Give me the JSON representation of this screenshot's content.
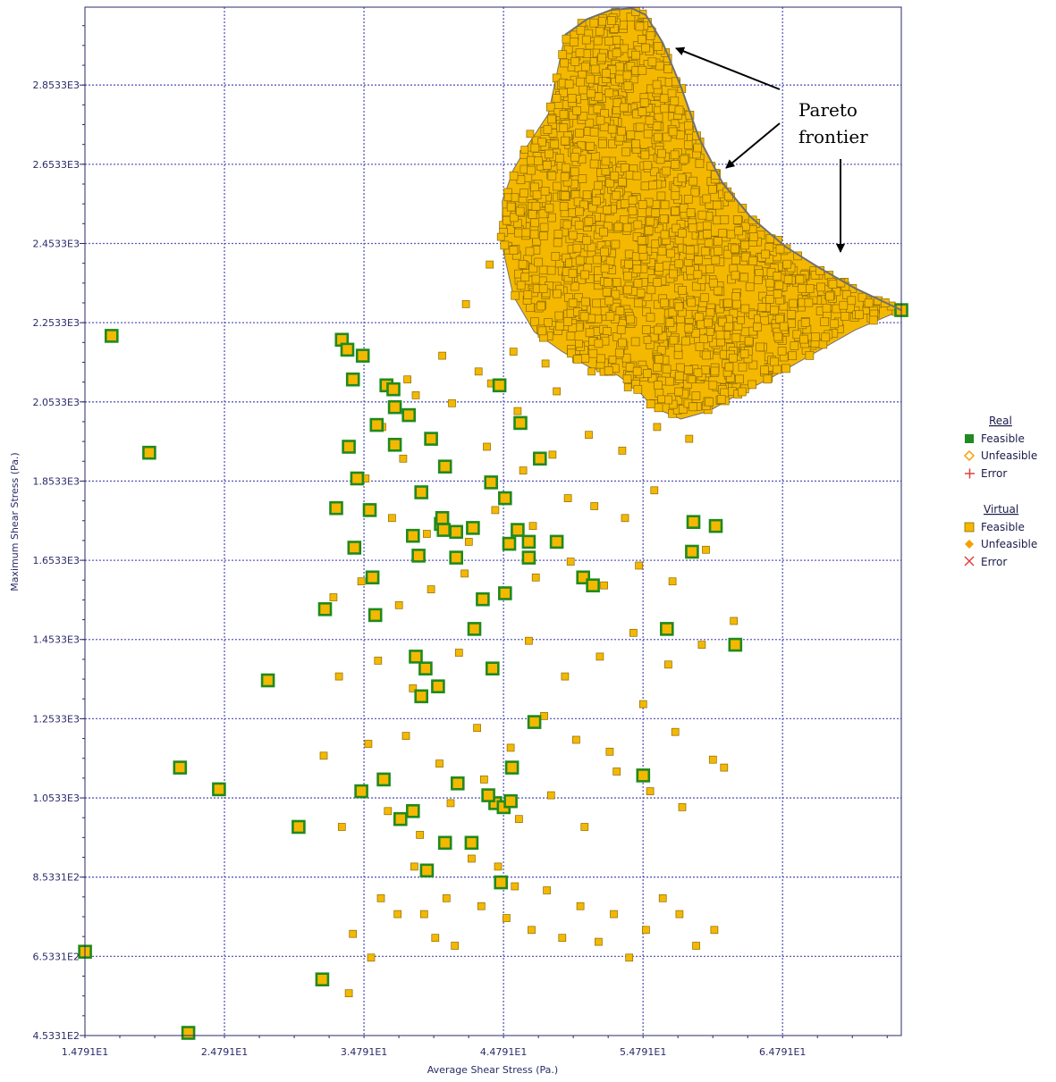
{
  "colors": {
    "real_feasible_fill": "#f5b800",
    "real_feasible_border": "#1f8a1f",
    "virtual_feasible_fill": "#f5b800",
    "virtual_feasible_border": "#8a6a00",
    "unfeasible": "#f5a000",
    "error": "#e04040",
    "grid": "#5b5bbb",
    "axis": "#2a2a6a",
    "pareto_edge": "#707070"
  },
  "chart_data": {
    "type": "scatter",
    "xlabel": "Average Shear Stress (Pa.)",
    "ylabel": "Maximum Shear Stress (Pa.)",
    "xlim": [
      14.791,
      73.3
    ],
    "ylim": [
      453.31,
      3050
    ],
    "x_ticks": [
      14.791,
      24.791,
      34.791,
      44.791,
      54.791,
      64.791
    ],
    "x_tick_labels": [
      "1.4791E1",
      "2.4791E1",
      "3.4791E1",
      "4.4791E1",
      "5.4791E1",
      "6.4791E1"
    ],
    "y_ticks": [
      453.31,
      653.31,
      853.31,
      1053.3,
      1253.3,
      1453.3,
      1653.3,
      1853.3,
      2053.3,
      2253.3,
      2453.3,
      2653.3,
      2853.3
    ],
    "y_tick_labels": [
      "4.5331E2",
      "6.5331E2",
      "8.5331E2",
      "1.0533E3",
      "1.2533E3",
      "1.4533E3",
      "1.6533E3",
      "1.8533E3",
      "2.0533E3",
      "2.2533E3",
      "2.4533E3",
      "2.6533E3",
      "2.8533E3"
    ],
    "grid": true,
    "legend": {
      "position": "right",
      "groups": [
        {
          "heading": "Real",
          "items": [
            {
              "label": "Feasible",
              "marker": "green-square"
            },
            {
              "label": "Unfeasible",
              "marker": "orange-diamond-outline"
            },
            {
              "label": "Error",
              "marker": "red-plus"
            }
          ]
        },
        {
          "heading": "Virtual",
          "items": [
            {
              "label": "Feasible",
              "marker": "orange-square"
            },
            {
              "label": "Unfeasible",
              "marker": "orange-diamond-filled"
            },
            {
              "label": "Error",
              "marker": "red-cross"
            }
          ]
        }
      ]
    },
    "annotation": {
      "lines": [
        "Pareto",
        "frontier"
      ],
      "arrow_targets": [
        [
          56.4,
          2930
        ],
        [
          58.5,
          2650
        ],
        [
          69.3,
          2440
        ]
      ]
    },
    "pareto_frontier": [
      [
        49.2,
        2980
      ],
      [
        50.8,
        3020
      ],
      [
        52.5,
        3043
      ],
      [
        54.0,
        3047
      ],
      [
        55.0,
        3030
      ],
      [
        56.2,
        2960
      ],
      [
        57.5,
        2850
      ],
      [
        58.8,
        2720
      ],
      [
        60.5,
        2605
      ],
      [
        62.5,
        2520
      ],
      [
        65.0,
        2445
      ],
      [
        67.5,
        2390
      ],
      [
        70.0,
        2340
      ],
      [
        71.8,
        2310
      ],
      [
        73.3,
        2285
      ]
    ],
    "pareto_lower_boundary": [
      [
        73.3,
        2285
      ],
      [
        70.0,
        2235
      ],
      [
        67.0,
        2175
      ],
      [
        64.0,
        2115
      ],
      [
        61.5,
        2070
      ],
      [
        59.5,
        2030
      ],
      [
        57.5,
        2010
      ],
      [
        55.5,
        2040
      ],
      [
        54.5,
        2080
      ],
      [
        53.0,
        2120
      ],
      [
        51.0,
        2140
      ],
      [
        49.0,
        2180
      ],
      [
        47.0,
        2230
      ],
      [
        45.5,
        2320
      ],
      [
        44.8,
        2430
      ],
      [
        44.7,
        2560
      ],
      [
        45.5,
        2640
      ],
      [
        46.5,
        2700
      ],
      [
        48.0,
        2780
      ],
      [
        49.2,
        2980
      ]
    ],
    "dense_region_point_count": 1400,
    "series": [
      {
        "name": "Real Feasible",
        "x": [
          14.8,
          16.7,
          19.4,
          21.6,
          22.2,
          24.4,
          27.9,
          30.1,
          31.8,
          32.0,
          32.8,
          33.2,
          33.6,
          33.7,
          34.0,
          34.1,
          34.3,
          34.6,
          34.7,
          35.2,
          35.6,
          35.7,
          36.4,
          36.9,
          37.0,
          37.0,
          38.0,
          38.3,
          38.7,
          38.9,
          39.2,
          39.6,
          40.3,
          40.4,
          40.5,
          40.6,
          41.4,
          41.4,
          42.6,
          43.3,
          43.9,
          44.2,
          44.5,
          44.8,
          44.9,
          45.2,
          45.4,
          45.8,
          46.0,
          46.6,
          47.0,
          47.4,
          48.6,
          50.5,
          51.2,
          56.5,
          58.3,
          58.4,
          60.0,
          61.4,
          73.3,
          35.4,
          40.1,
          38.9,
          42.7,
          44.9,
          46.6,
          38.5,
          44.0,
          54.8,
          36.2,
          38.3,
          41.5,
          45.3,
          43.7,
          37.4,
          42.5,
          44.6,
          40.6,
          39.3
        ],
        "y": [
          665,
          2220,
          1925,
          1130,
          460,
          1075,
          1350,
          980,
          595,
          1530,
          1785,
          2210,
          2185,
          1940,
          2110,
          1685,
          1860,
          1070,
          2170,
          1780,
          1515,
          1995,
          2095,
          2085,
          1945,
          2040,
          2020,
          1715,
          1665,
          1825,
          1380,
          1960,
          1745,
          1760,
          1730,
          1890,
          1660,
          1725,
          1735,
          1555,
          1850,
          1040,
          2095,
          1030,
          1810,
          1695,
          1130,
          1730,
          2000,
          1700,
          1245,
          1910,
          1700,
          1610,
          1590,
          1480,
          1675,
          1750,
          1740,
          1440,
          2285,
          1610,
          1335,
          1310,
          1480,
          1570,
          1660,
          1410,
          1380,
          1110,
          1100,
          1020,
          1090,
          1045,
          1060,
          1000,
          940,
          840,
          940,
          870
        ]
      },
      {
        "name": "Virtual Feasible",
        "x": [
          33.7,
          34.0,
          35.3,
          36.0,
          37.2,
          38.4,
          39.1,
          39.9,
          40.7,
          41.3,
          42.5,
          43.2,
          44.4,
          45.0,
          45.6,
          46.8,
          47.9,
          49.0,
          50.3,
          51.6,
          52.7,
          53.8,
          55.0,
          56.2,
          57.4,
          58.6,
          59.9,
          33.2,
          36.5,
          38.8,
          41.0,
          43.4,
          45.9,
          48.2,
          50.6,
          52.9,
          55.3,
          57.6,
          59.8,
          31.9,
          35.1,
          37.8,
          40.2,
          42.9,
          45.3,
          47.7,
          50.0,
          52.4,
          54.8,
          57.1,
          60.6,
          33.0,
          35.8,
          38.3,
          41.6,
          44.1,
          46.6,
          49.2,
          51.7,
          54.1,
          56.6,
          59.0,
          61.3,
          32.6,
          34.6,
          37.3,
          39.6,
          42.0,
          44.7,
          47.1,
          49.6,
          52.0,
          54.5,
          56.9,
          59.3,
          33.9,
          36.8,
          39.3,
          42.3,
          44.2,
          46.9,
          49.4,
          51.3,
          53.5,
          55.6,
          34.9,
          37.6,
          40.8,
          43.6,
          46.2,
          48.3,
          50.9,
          53.3,
          55.8,
          58.1,
          36.1,
          38.5,
          41.1,
          43.9,
          45.8,
          48.6,
          51.1,
          53.7,
          56.1,
          58.3,
          37.9,
          40.4,
          43.0,
          45.5,
          47.8,
          50.2,
          52.6,
          55.1,
          57.3,
          59.6,
          61.8,
          42.1,
          43.8,
          44.6,
          45.1,
          46.3,
          46.7
        ],
        "y": [
          560,
          710,
          650,
          800,
          760,
          880,
          760,
          700,
          800,
          680,
          900,
          780,
          880,
          750,
          830,
          720,
          820,
          700,
          780,
          690,
          760,
          650,
          720,
          800,
          760,
          680,
          720,
          980,
          1020,
          960,
          1040,
          1100,
          1000,
          1060,
          980,
          1120,
          1070,
          1030,
          1150,
          1160,
          1190,
          1210,
          1140,
          1230,
          1180,
          1260,
          1200,
          1170,
          1290,
          1220,
          1130,
          1360,
          1400,
          1330,
          1420,
          1380,
          1450,
          1360,
          1410,
          1470,
          1390,
          1440,
          1500,
          1560,
          1600,
          1540,
          1580,
          1620,
          1570,
          1610,
          1650,
          1590,
          1640,
          1600,
          1680,
          1680,
          1760,
          1720,
          1700,
          1780,
          1740,
          1810,
          1790,
          1760,
          1830,
          1860,
          1910,
          1890,
          1940,
          1880,
          1920,
          1970,
          1930,
          1990,
          1960,
          1990,
          2070,
          2050,
          2100,
          2030,
          2080,
          2130,
          2090,
          2060,
          2110,
          2110,
          2170,
          2130,
          2180,
          2150,
          2200,
          2160,
          2210,
          2190,
          2230,
          2260,
          2300,
          2400,
          2470,
          2570,
          2690,
          2730
        ]
      }
    ]
  }
}
